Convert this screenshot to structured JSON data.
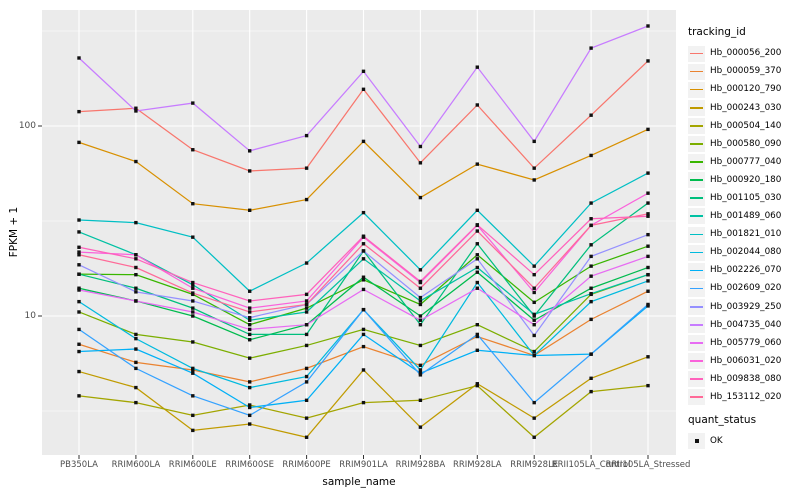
{
  "chart_data": {
    "type": "line",
    "title": "",
    "xlabel": "sample_name",
    "ylabel": "FPKM + 1",
    "x_categories": [
      "PB350LA",
      "RRIM600LA",
      "RRIM600LE",
      "RRIM600SE",
      "RRIM600PE",
      "RRIM901LA",
      "RRIM928BA",
      "RRIM928LA",
      "RRIM928LE",
      "RRII105LA_Control",
      "RRII105LA_Stressed"
    ],
    "y_axis": {
      "scale": "log10",
      "ticks": [
        10,
        100
      ],
      "tick_labels": [
        "10",
        "100"
      ],
      "approx_range": [
        1.85,
        410
      ],
      "minor_gridlines_at": [
        3.162,
        31.62,
        316.2
      ]
    },
    "legend": {
      "title": "tracking_id",
      "position": "right"
    },
    "quant_status_legend": {
      "title": "quant_status",
      "items": [
        {
          "label": "OK",
          "symbol": "filled-black-square"
        }
      ]
    },
    "style": {
      "panel_background": "#EBEBEB",
      "grid_color": "#FFFFFF",
      "point_color": "#111111",
      "axis_text_color": "#4D4D4D",
      "legend_key_fill": "#F2F2F2"
    },
    "series": [
      {
        "name": "Hb_000056_200",
        "color": "#F8766D",
        "values": [
          119,
          124,
          75,
          58,
          60,
          156,
          64,
          129,
          60,
          114,
          220
        ]
      },
      {
        "name": "Hb_000059_370",
        "color": "#EA8331",
        "values": [
          7.1,
          5.7,
          5.2,
          4.5,
          5.3,
          6.9,
          5.5,
          7.8,
          6.2,
          9.6,
          13.5
        ]
      },
      {
        "name": "Hb_000120_790",
        "color": "#D89000",
        "values": [
          82,
          65,
          39,
          36,
          41,
          83,
          42,
          63,
          52,
          70,
          96
        ]
      },
      {
        "name": "Hb_000243_030",
        "color": "#C09B00",
        "values": [
          5.1,
          4.2,
          2.5,
          2.7,
          2.3,
          5.2,
          2.6,
          4.4,
          2.9,
          4.7,
          6.1
        ]
      },
      {
        "name": "Hb_000504_140",
        "color": "#A3A500",
        "values": [
          3.8,
          3.5,
          3.0,
          3.4,
          2.9,
          3.5,
          3.6,
          4.3,
          2.3,
          4.0,
          4.3
        ]
      },
      {
        "name": "Hb_000580_090",
        "color": "#7CAE00",
        "values": [
          10.5,
          8.0,
          7.3,
          6.0,
          7.0,
          8.5,
          7.0,
          9.0,
          6.5,
          13.0,
          16.5
        ]
      },
      {
        "name": "Hb_000777_040",
        "color": "#39B600",
        "values": [
          16.6,
          16.5,
          13.0,
          9.0,
          11.0,
          15.5,
          11.5,
          21.0,
          11.8,
          18.3,
          23.3
        ]
      },
      {
        "name": "Hb_000920_180",
        "color": "#00BB4E",
        "values": [
          14.0,
          12.0,
          10.0,
          7.5,
          9.0,
          16.0,
          10.0,
          17.0,
          9.5,
          14.0,
          18.0
        ]
      },
      {
        "name": "Hb_001105_030",
        "color": "#00BF7D",
        "values": [
          16.6,
          14.0,
          11.0,
          8.0,
          8.0,
          22.0,
          9.0,
          24.0,
          10.0,
          23.7,
          39.3
        ]
      },
      {
        "name": "Hb_001489_060",
        "color": "#00C1A3",
        "values": [
          27.7,
          21.0,
          14.6,
          9.5,
          10.5,
          20.0,
          12.0,
          18.0,
          10.2,
          13.1,
          16.5
        ]
      },
      {
        "name": "Hb_001821_010",
        "color": "#00BFC4",
        "values": [
          32,
          31,
          26,
          13.5,
          19,
          35,
          17.5,
          36,
          18.3,
          39.3,
          56.5
        ]
      },
      {
        "name": "Hb_002044_080",
        "color": "#00BADE",
        "values": [
          11.9,
          7.6,
          5.3,
          4.2,
          4.8,
          10.8,
          5.2,
          15.0,
          6.2,
          11.9,
          15.3
        ]
      },
      {
        "name": "Hb_002226_070",
        "color": "#00B0F6",
        "values": [
          6.5,
          6.7,
          5.0,
          3.3,
          3.6,
          8.0,
          5.0,
          6.6,
          6.2,
          6.3,
          11.3
        ]
      },
      {
        "name": "Hb_002609_020",
        "color": "#35A2FF",
        "values": [
          8.5,
          5.3,
          3.8,
          3.0,
          4.5,
          10.8,
          4.9,
          8.0,
          3.5,
          6.3,
          11.5
        ]
      },
      {
        "name": "Hb_003929_250",
        "color": "#9590FF",
        "values": [
          18.6,
          13.4,
          12.0,
          9.8,
          11.5,
          22.0,
          12.5,
          20.0,
          7.9,
          20.6,
          26.8
        ]
      },
      {
        "name": "Hb_004735_040",
        "color": "#C77CFF",
        "values": [
          228,
          120,
          132,
          74,
          89,
          194,
          78,
          204,
          83,
          257,
          336
        ]
      },
      {
        "name": "Hb_005779_060",
        "color": "#E76BF3",
        "values": [
          13.7,
          12.0,
          10.5,
          8.5,
          9.0,
          13.8,
          9.5,
          14.0,
          9.0,
          16.2,
          20.6
        ]
      },
      {
        "name": "Hb_006031_020",
        "color": "#FA62DB",
        "values": [
          21.7,
          21.0,
          14.0,
          11.0,
          12.0,
          26.0,
          15.0,
          30.0,
          13.3,
          30.0,
          44.3
        ]
      },
      {
        "name": "Hb_009838_080",
        "color": "#FF62BC",
        "values": [
          23,
          20,
          15,
          12,
          13,
          26.3,
          15.2,
          30.2,
          16.5,
          32.5,
          33.5
        ]
      },
      {
        "name": "Hb_153112_020",
        "color": "#FF6A98",
        "values": [
          21,
          18,
          13.2,
          10.5,
          11.5,
          24,
          14,
          28,
          14,
          30.0,
          34.5
        ]
      }
    ]
  }
}
